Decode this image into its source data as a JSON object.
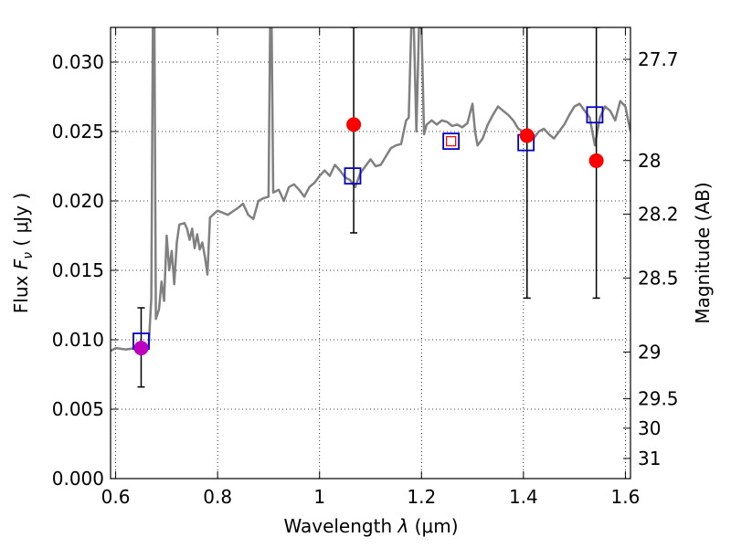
{
  "chart_data": {
    "type": "line",
    "xlabel": "Wavelength  λ (μm)",
    "ylabel": "Flux  Fν  ( μJy )",
    "ylabel_parts": {
      "prefix": "Flux  ",
      "symbol": "F",
      "subscript": "ν",
      "suffix": "  ( μJy )"
    },
    "xlabel_parts": {
      "prefix": "Wavelength  ",
      "symbol": "λ",
      "suffix": " (μm)"
    },
    "y2label": "Magnitude (AB)",
    "xlim": [
      0.59,
      1.61
    ],
    "ylim": [
      0.0,
      0.0325
    ],
    "grid": true,
    "x_ticks": [
      0.6,
      0.8,
      1.0,
      1.2,
      1.4,
      1.6
    ],
    "x_tick_labels": [
      "0.6",
      "0.8",
      "1",
      "1.2",
      "1.4",
      "1.6"
    ],
    "y_ticks": [
      0.0,
      0.005,
      0.01,
      0.015,
      0.02,
      0.025,
      0.03
    ],
    "y_tick_labels": [
      "0.000",
      "0.005",
      "0.010",
      "0.015",
      "0.020",
      "0.025",
      "0.030"
    ],
    "y2_ticks": [
      {
        "label": "27.7",
        "flux": 0.0302
      },
      {
        "label": "28",
        "flux": 0.02291
      },
      {
        "label": "28.2",
        "flux": 0.01905
      },
      {
        "label": "28.5",
        "flux": 0.01445
      },
      {
        "label": "29",
        "flux": 0.00912
      },
      {
        "label": "29.5",
        "flux": 0.00575
      },
      {
        "label": "30",
        "flux": 0.00363
      },
      {
        "label": "31",
        "flux": 0.00145
      }
    ],
    "colors": {
      "spectrum": "#808080",
      "observed": "#ff0000",
      "model": "#0000cc",
      "highlight": "#bf00bf",
      "errorbar": "#000000",
      "grid": "#000000"
    },
    "spectrum": [
      [
        0.59,
        0.0092
      ],
      [
        0.6,
        0.0094
      ],
      [
        0.62,
        0.0093
      ],
      [
        0.64,
        0.0094
      ],
      [
        0.655,
        0.0094
      ],
      [
        0.665,
        0.0096
      ],
      [
        0.67,
        0.013
      ],
      [
        0.673,
        0.0325
      ],
      [
        0.676,
        0.0325
      ],
      [
        0.679,
        0.0115
      ],
      [
        0.685,
        0.0122
      ],
      [
        0.69,
        0.0142
      ],
      [
        0.695,
        0.0128
      ],
      [
        0.7,
        0.0175
      ],
      [
        0.705,
        0.015
      ],
      [
        0.71,
        0.0164
      ],
      [
        0.715,
        0.014
      ],
      [
        0.72,
        0.017
      ],
      [
        0.725,
        0.0183
      ],
      [
        0.735,
        0.0184
      ],
      [
        0.74,
        0.018
      ],
      [
        0.745,
        0.0172
      ],
      [
        0.75,
        0.018
      ],
      [
        0.755,
        0.0166
      ],
      [
        0.76,
        0.0176
      ],
      [
        0.765,
        0.0165
      ],
      [
        0.77,
        0.017
      ],
      [
        0.775,
        0.016
      ],
      [
        0.78,
        0.0147
      ],
      [
        0.785,
        0.0188
      ],
      [
        0.8,
        0.0193
      ],
      [
        0.82,
        0.019
      ],
      [
        0.84,
        0.0195
      ],
      [
        0.85,
        0.0198
      ],
      [
        0.86,
        0.019
      ],
      [
        0.87,
        0.0187
      ],
      [
        0.88,
        0.02
      ],
      [
        0.89,
        0.0202
      ],
      [
        0.9,
        0.0203
      ],
      [
        0.903,
        0.0325
      ],
      [
        0.906,
        0.0325
      ],
      [
        0.909,
        0.0206
      ],
      [
        0.92,
        0.0208
      ],
      [
        0.93,
        0.02
      ],
      [
        0.94,
        0.021
      ],
      [
        0.95,
        0.0212
      ],
      [
        0.96,
        0.0208
      ],
      [
        0.97,
        0.0203
      ],
      [
        0.98,
        0.021
      ],
      [
        0.99,
        0.0213
      ],
      [
        1.0,
        0.0218
      ],
      [
        1.01,
        0.0222
      ],
      [
        1.02,
        0.0218
      ],
      [
        1.03,
        0.0226
      ],
      [
        1.04,
        0.0222
      ],
      [
        1.05,
        0.0217
      ],
      [
        1.06,
        0.0215
      ],
      [
        1.07,
        0.021
      ],
      [
        1.08,
        0.022
      ],
      [
        1.09,
        0.0225
      ],
      [
        1.1,
        0.023
      ],
      [
        1.11,
        0.0225
      ],
      [
        1.12,
        0.0226
      ],
      [
        1.13,
        0.0232
      ],
      [
        1.14,
        0.0238
      ],
      [
        1.15,
        0.024
      ],
      [
        1.16,
        0.0241
      ],
      [
        1.165,
        0.025
      ],
      [
        1.17,
        0.0258
      ],
      [
        1.175,
        0.026
      ],
      [
        1.18,
        0.0325
      ],
      [
        1.185,
        0.0325
      ],
      [
        1.19,
        0.025
      ],
      [
        1.195,
        0.0325
      ],
      [
        1.2,
        0.0325
      ],
      [
        1.205,
        0.0248
      ],
      [
        1.21,
        0.0255
      ],
      [
        1.22,
        0.0258
      ],
      [
        1.23,
        0.0255
      ],
      [
        1.24,
        0.0258
      ],
      [
        1.25,
        0.0257
      ],
      [
        1.26,
        0.0254
      ],
      [
        1.27,
        0.0255
      ],
      [
        1.28,
        0.0253
      ],
      [
        1.29,
        0.0256
      ],
      [
        1.3,
        0.027
      ],
      [
        1.305,
        0.025
      ],
      [
        1.31,
        0.024
      ],
      [
        1.32,
        0.0245
      ],
      [
        1.33,
        0.0255
      ],
      [
        1.34,
        0.0262
      ],
      [
        1.35,
        0.0268
      ],
      [
        1.36,
        0.0265
      ],
      [
        1.37,
        0.0262
      ],
      [
        1.38,
        0.0258
      ],
      [
        1.39,
        0.0252
      ],
      [
        1.4,
        0.025
      ],
      [
        1.41,
        0.0248
      ],
      [
        1.42,
        0.0245
      ],
      [
        1.43,
        0.025
      ],
      [
        1.44,
        0.0252
      ],
      [
        1.45,
        0.0248
      ],
      [
        1.46,
        0.0245
      ],
      [
        1.47,
        0.025
      ],
      [
        1.48,
        0.0255
      ],
      [
        1.49,
        0.0262
      ],
      [
        1.5,
        0.0268
      ],
      [
        1.51,
        0.027
      ],
      [
        1.52,
        0.0265
      ],
      [
        1.53,
        0.026
      ],
      [
        1.54,
        0.024
      ],
      [
        1.55,
        0.026
      ],
      [
        1.56,
        0.0268
      ],
      [
        1.57,
        0.0265
      ],
      [
        1.58,
        0.0258
      ],
      [
        1.59,
        0.0272
      ],
      [
        1.6,
        0.0268
      ],
      [
        1.61,
        0.025
      ]
    ],
    "model_points": [
      {
        "x": 0.65,
        "y": 0.0099,
        "style": "blue"
      },
      {
        "x": 1.065,
        "y": 0.0218,
        "style": "blue"
      },
      {
        "x": 1.258,
        "y": 0.0243,
        "style": "blue-red"
      },
      {
        "x": 1.405,
        "y": 0.0242,
        "style": "blue"
      },
      {
        "x": 1.54,
        "y": 0.0262,
        "style": "blue"
      }
    ],
    "observed_points": [
      {
        "x": 0.65,
        "y": 0.0094,
        "err_low": 0.0066,
        "err_high": 0.0123,
        "color": "highlight"
      },
      {
        "x": 1.067,
        "y": 0.0255,
        "err_low": 0.0177,
        "err_high": 0.0325,
        "color": "observed"
      },
      {
        "x": 1.407,
        "y": 0.0247,
        "err_low": 0.013,
        "err_high": 0.0325,
        "color": "observed"
      },
      {
        "x": 1.543,
        "y": 0.0229,
        "err_low": 0.013,
        "err_high": 0.0325,
        "color": "observed"
      }
    ]
  }
}
